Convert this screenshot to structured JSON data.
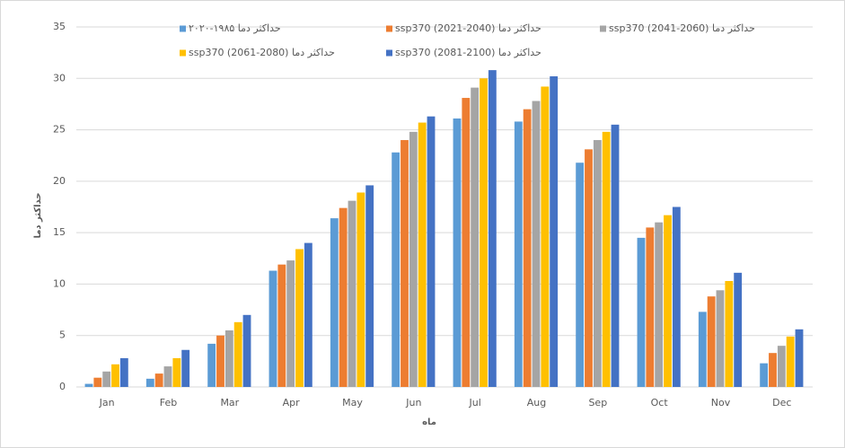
{
  "chart_data": {
    "type": "bar",
    "x_label": "ماه",
    "y_label": "حداکثر دما",
    "categories": [
      "Jan",
      "Feb",
      "Mar",
      "Apr",
      "May",
      "Jun",
      "Jul",
      "Aug",
      "Sep",
      "Oct",
      "Nov",
      "Dec"
    ],
    "series": [
      {
        "name": "حداکثر دما ۱۹۸۵-۲۰۲۰",
        "color": "#5b9bd5",
        "values": [
          0.3,
          0.8,
          4.2,
          11.3,
          16.4,
          22.8,
          26.1,
          25.8,
          21.8,
          14.5,
          7.3,
          2.3
        ]
      },
      {
        "name": "ssp370 (2021-2040) حداکثر دما",
        "color": "#ed7d31",
        "values": [
          0.9,
          1.3,
          5.0,
          11.9,
          17.4,
          24.0,
          28.1,
          27.0,
          23.1,
          15.5,
          8.8,
          3.3
        ]
      },
      {
        "name": "ssp370 (2041-2060) حداکثر دما",
        "color": "#a5a5a5",
        "values": [
          1.5,
          2.0,
          5.5,
          12.3,
          18.1,
          24.8,
          29.1,
          27.8,
          24.0,
          16.0,
          9.4,
          4.0
        ]
      },
      {
        "name": "ssp370 (2061-2080) حداکثر دما",
        "color": "#ffc000",
        "values": [
          2.2,
          2.8,
          6.3,
          13.4,
          18.9,
          25.7,
          30.0,
          29.2,
          24.8,
          16.7,
          10.3,
          4.9
        ]
      },
      {
        "name": "ssp370 (2081-2100) حداکثر دما",
        "color": "#4472c4",
        "values": [
          2.8,
          3.6,
          7.0,
          14.0,
          19.6,
          26.3,
          30.8,
          30.2,
          25.5,
          17.5,
          11.1,
          5.6
        ]
      }
    ],
    "ylim": [
      0,
      35
    ],
    "yticks": [
      0,
      5,
      10,
      15,
      20,
      25,
      30,
      35
    ],
    "grid": true
  }
}
